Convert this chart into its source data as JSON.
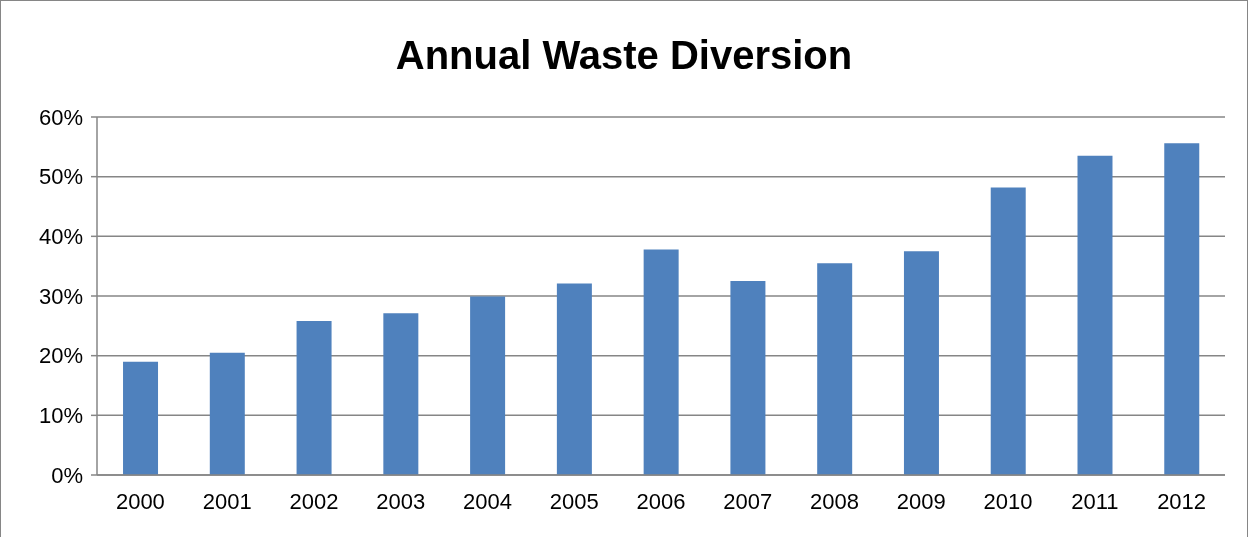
{
  "chart_data": {
    "type": "bar",
    "title": "Annual Waste Diversion",
    "categories": [
      "2000",
      "2001",
      "2002",
      "2003",
      "2004",
      "2005",
      "2006",
      "2007",
      "2008",
      "2009",
      "2010",
      "2011",
      "2012"
    ],
    "values": [
      19.0,
      20.5,
      25.8,
      27.1,
      29.9,
      32.1,
      37.8,
      32.5,
      35.5,
      37.5,
      48.2,
      53.5,
      55.6
    ],
    "color": "#4f81bd",
    "ylim": [
      0,
      60
    ],
    "yticks": [
      {
        "value": 0,
        "label": "0%"
      },
      {
        "value": 10,
        "label": "10%"
      },
      {
        "value": 20,
        "label": "20%"
      },
      {
        "value": 30,
        "label": "30%"
      },
      {
        "value": 40,
        "label": "40%"
      },
      {
        "value": 50,
        "label": "50%"
      },
      {
        "value": 60,
        "label": "60%"
      }
    ],
    "grid": "y"
  }
}
